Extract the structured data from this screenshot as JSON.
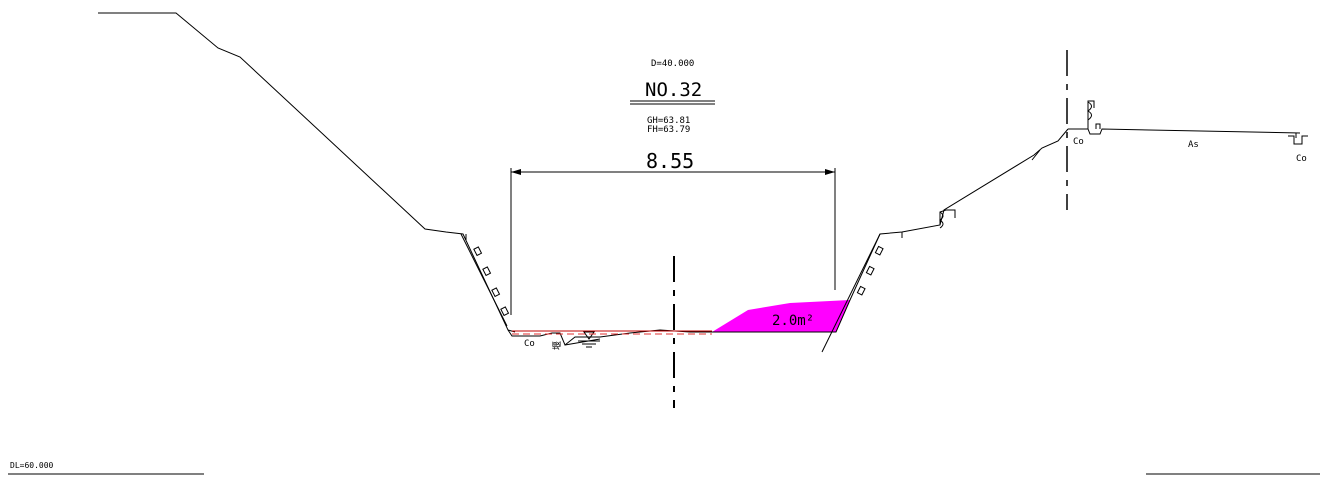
{
  "section": {
    "distance": "D=40.000",
    "number": "NO.32",
    "ground_height": "GH=63.81",
    "formation_height": "FH=63.79"
  },
  "dimension": {
    "width_label": "8.55"
  },
  "area": {
    "label": "2.0m²",
    "fill_color": "#ff00ff"
  },
  "labels": {
    "co_left": "Co",
    "weir": "堰",
    "co_road": "Co",
    "as_road": "As",
    "co_ditch": "Co"
  },
  "datum": {
    "label": "DL=60.000"
  },
  "colors": {
    "line": "#000000",
    "plan_line": "#c00000"
  }
}
